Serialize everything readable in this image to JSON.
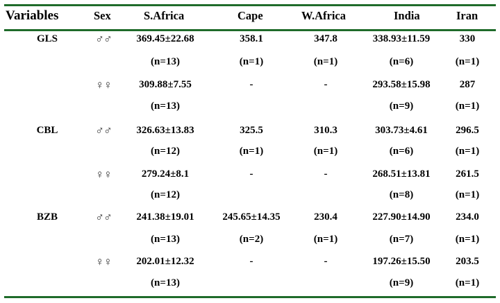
{
  "table": {
    "headers": [
      "Variables",
      "Sex",
      "S.Africa",
      "Cape",
      "W.Africa",
      "India",
      "Iran"
    ],
    "rows": [
      {
        "variable": "GLS",
        "sex": "♂♂",
        "s_africa": "369.45±22.68",
        "cape": "358.1",
        "w_africa": "347.8",
        "india": "338.93±11.59",
        "iran": "330"
      },
      {
        "variable": "",
        "sex": "",
        "s_africa": "(n=13)",
        "cape": "(n=1)",
        "w_africa": "(n=1)",
        "india": "(n=6)",
        "iran": "(n=1)"
      },
      {
        "variable": "",
        "sex": "♀♀",
        "s_africa": "309.88±7.55",
        "cape": "-",
        "w_africa": "-",
        "india": "293.58±15.98",
        "iran": "287"
      },
      {
        "variable": "",
        "sex": "",
        "s_africa": "(n=13)",
        "cape": "",
        "w_africa": "",
        "india": "(n=9)",
        "iran": "(n=1)"
      },
      {
        "variable": "CBL",
        "sex": "♂♂",
        "s_africa": "326.63±13.83",
        "cape": "325.5",
        "w_africa": "310.3",
        "india": "303.73±4.61",
        "iran": "296.5"
      },
      {
        "variable": "",
        "sex": "",
        "s_africa": "(n=12)",
        "cape": "(n=1)",
        "w_africa": "(n=1)",
        "india": "(n=6)",
        "iran": "(n=1)"
      },
      {
        "variable": "",
        "sex": "♀♀",
        "s_africa": "279.24±8.1",
        "cape": "-",
        "w_africa": "-",
        "india": "268.51±13.81",
        "iran": "261.5"
      },
      {
        "variable": "",
        "sex": "",
        "s_africa": "(n=12)",
        "cape": "",
        "w_africa": "",
        "india": "(n=8)",
        "iran": "(n=1)"
      },
      {
        "variable": "BZB",
        "sex": "♂♂",
        "s_africa": "241.38±19.01",
        "cape": "245.65±14.35",
        "w_africa": "230.4",
        "india": "227.90±14.90",
        "iran": "234.0"
      },
      {
        "variable": "",
        "sex": "",
        "s_africa": "(n=13)",
        "cape": "(n=2)",
        "w_africa": "(n=1)",
        "india": "(n=7)",
        "iran": "(n=1)"
      },
      {
        "variable": "",
        "sex": "♀♀",
        "s_africa": "202.01±12.32",
        "cape": "-",
        "w_africa": "-",
        "india": "197.26±15.50",
        "iran": "203.5"
      },
      {
        "variable": "",
        "sex": "",
        "s_africa": "(n=13)",
        "cape": "",
        "w_africa": "",
        "india": "(n=9)",
        "iran": "(n=1)"
      }
    ]
  },
  "colors": {
    "rule": "#1f6b2a",
    "text": "#000000"
  }
}
